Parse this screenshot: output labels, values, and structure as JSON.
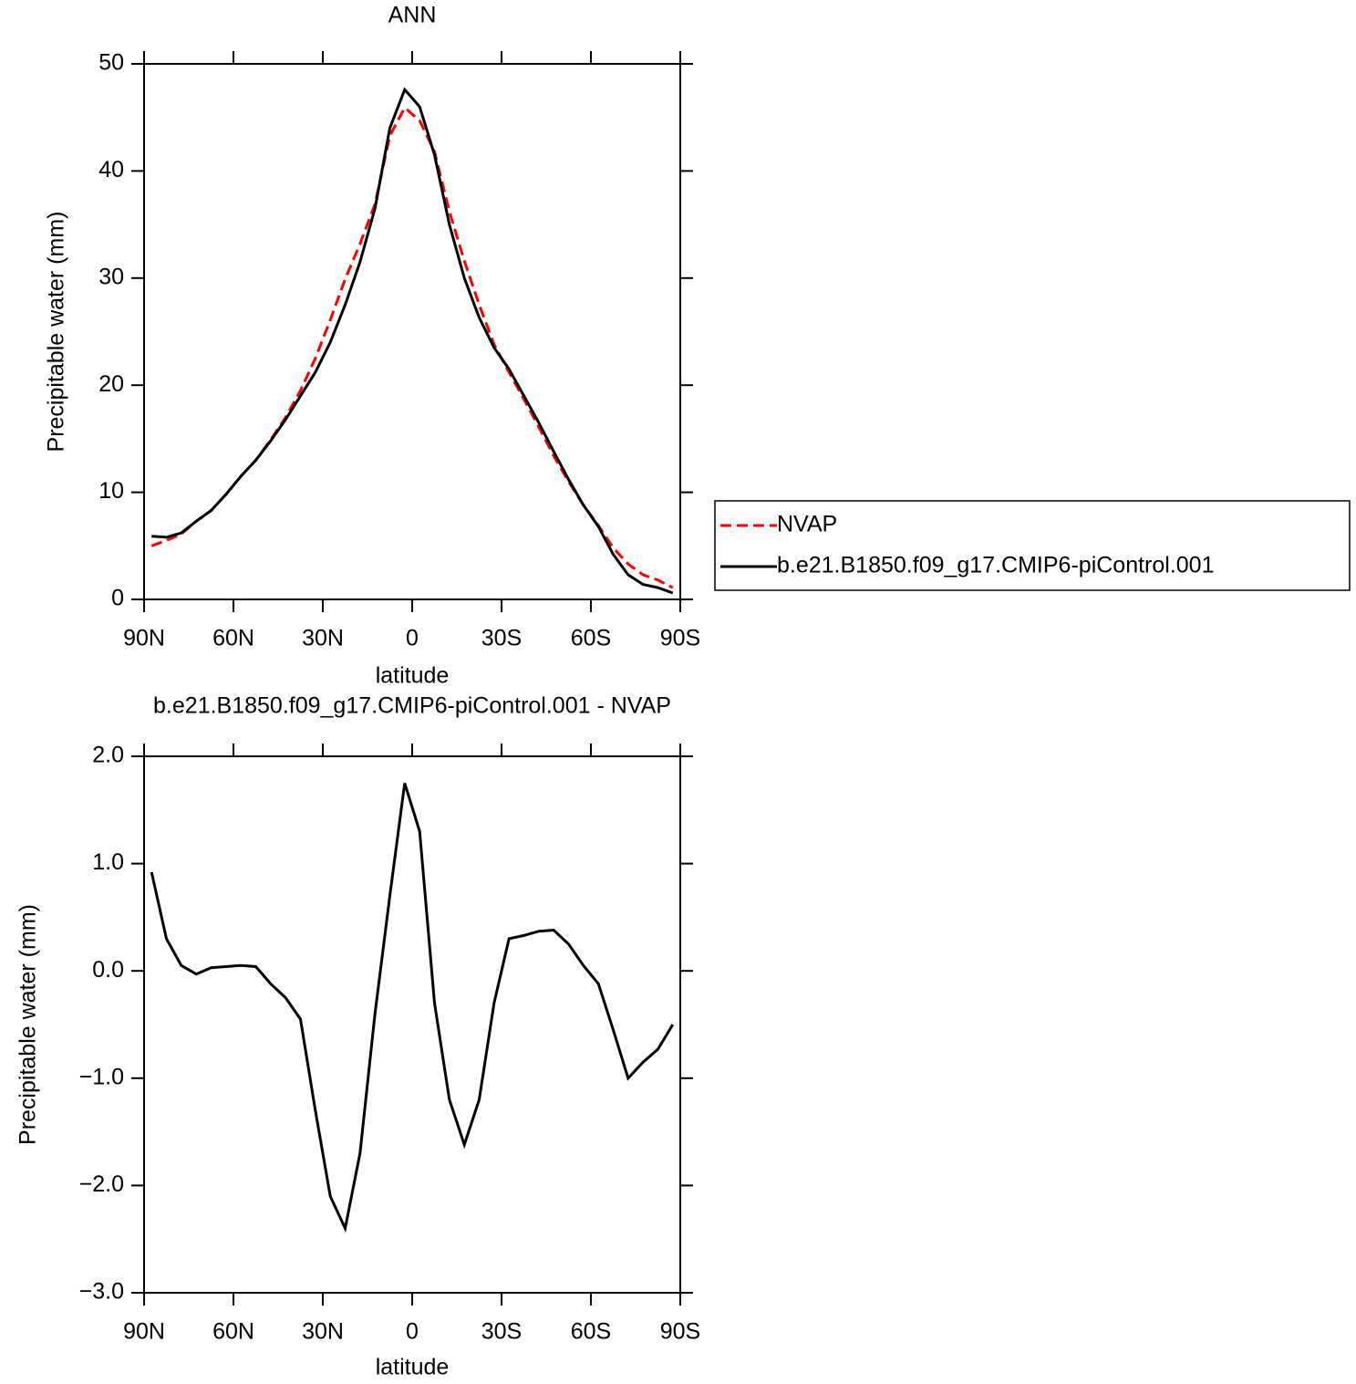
{
  "chart_data": [
    {
      "type": "line",
      "title": "ANN",
      "xlabel": "latitude",
      "ylabel": "Precipitable water (mm)",
      "x": [
        87.5,
        82.5,
        77.5,
        72.5,
        67.5,
        62.5,
        57.5,
        52.5,
        47.5,
        42.5,
        37.5,
        32.5,
        27.5,
        22.5,
        17.5,
        12.5,
        7.5,
        2.5,
        -2.5,
        -7.5,
        -12.5,
        -17.5,
        -22.5,
        -27.5,
        -32.5,
        -37.5,
        -42.5,
        -47.5,
        -52.5,
        -57.5,
        -62.5,
        -67.5,
        -72.5,
        -77.5,
        -82.5,
        -87.5
      ],
      "series": [
        {
          "name": "NVAP",
          "color": "#ff0000",
          "dash": true,
          "values": [
            5.0,
            5.5,
            6.1,
            7.3,
            8.3,
            9.8,
            11.5,
            13.0,
            14.9,
            17.0,
            19.5,
            22.5,
            26.1,
            29.9,
            33.2,
            36.9,
            43.3,
            45.9,
            44.7,
            41.8,
            36.2,
            31.6,
            27.5,
            23.8,
            21.2,
            18.7,
            16.1,
            13.4,
            11.0,
            8.8,
            6.9,
            4.8,
            3.3,
            2.3,
            1.8,
            1.1
          ]
        },
        {
          "name": "b.e21.B1850.f09_g17.CMIP6-piControl.001",
          "color": "#000000",
          "dash": false,
          "values": [
            5.9,
            5.8,
            6.2,
            7.3,
            8.3,
            9.8,
            11.5,
            13.0,
            14.8,
            16.8,
            19.0,
            21.2,
            24.0,
            27.5,
            31.5,
            36.5,
            44.0,
            47.6,
            46.0,
            41.5,
            35.0,
            30.0,
            26.3,
            23.5,
            21.5,
            19.0,
            16.5,
            13.8,
            11.2,
            8.8,
            6.8,
            4.2,
            2.3,
            1.4,
            1.1,
            0.6
          ]
        }
      ],
      "xlim": [
        90,
        -90
      ],
      "xticks": [
        {
          "value": 90,
          "label": "90N"
        },
        {
          "value": 60,
          "label": "60N"
        },
        {
          "value": 30,
          "label": "30N"
        },
        0,
        {
          "value": -30,
          "label": "30S"
        },
        {
          "value": -60,
          "label": "60S"
        },
        {
          "value": -90,
          "label": "90S"
        }
      ],
      "ylim": [
        0,
        50
      ],
      "yticks": [
        0,
        10,
        20,
        30,
        40,
        50
      ],
      "legend": "right"
    },
    {
      "type": "line",
      "title": "b.e21.B1850.f09_g17.CMIP6-piControl.001  -  NVAP",
      "xlabel": "latitude",
      "ylabel": "Precipitable water (mm)",
      "x": [
        87.5,
        82.5,
        77.5,
        72.5,
        67.5,
        62.5,
        57.5,
        52.5,
        47.5,
        42.5,
        37.5,
        32.5,
        27.5,
        22.5,
        17.5,
        12.5,
        7.5,
        2.5,
        -2.5,
        -7.5,
        -12.5,
        -17.5,
        -22.5,
        -27.5,
        -32.5,
        -37.5,
        -42.5,
        -47.5,
        -52.5,
        -57.5,
        -62.5,
        -67.5,
        -72.5,
        -77.5,
        -82.5,
        -87.5
      ],
      "series": [
        {
          "color": "#000000",
          "dash": false,
          "values": [
            0.92,
            0.3,
            0.05,
            -0.03,
            0.03,
            0.04,
            0.05,
            0.04,
            -0.12,
            -0.25,
            -0.45,
            -1.3,
            -2.1,
            -2.4,
            -1.7,
            -0.4,
            0.7,
            1.75,
            1.3,
            -0.3,
            -1.2,
            -1.62,
            -1.2,
            -0.3,
            0.3,
            0.33,
            0.37,
            0.38,
            0.25,
            0.05,
            -0.12,
            -0.55,
            -1.0,
            -0.85,
            -0.73,
            -0.5
          ]
        }
      ],
      "xlim": [
        90,
        -90
      ],
      "xticks": [
        {
          "value": 90,
          "label": "90N"
        },
        {
          "value": 60,
          "label": "60N"
        },
        {
          "value": 30,
          "label": "30N"
        },
        0,
        {
          "value": -30,
          "label": "30S"
        },
        {
          "value": -60,
          "label": "60S"
        },
        {
          "value": -90,
          "label": "90S"
        }
      ],
      "ylim": [
        -3,
        2
      ],
      "yticks": [
        {
          "value": -3,
          "label": "−3.0"
        },
        {
          "value": -2,
          "label": "−2.0"
        },
        {
          "value": -1,
          "label": "−1.0"
        },
        {
          "value": 0,
          "label": "0.0"
        },
        {
          "value": 1,
          "label": "1.0"
        },
        {
          "value": 2,
          "label": "2.0"
        }
      ]
    }
  ]
}
